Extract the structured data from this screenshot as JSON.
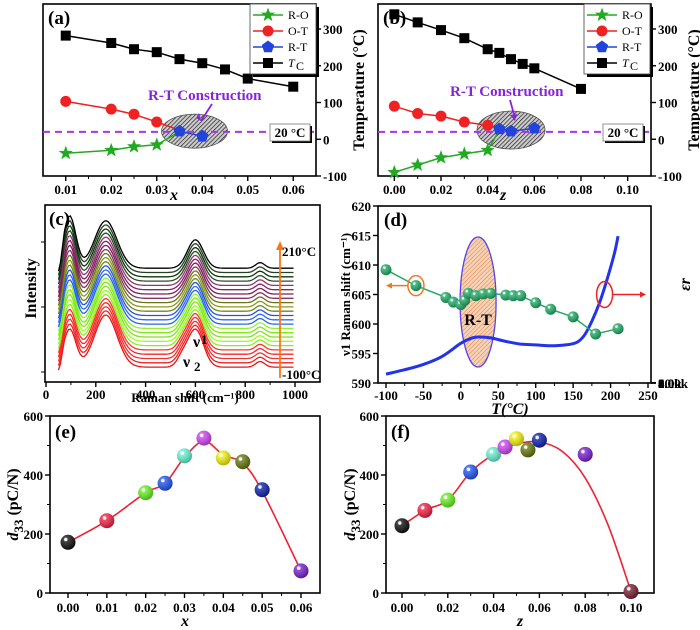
{
  "chart_data": [
    {
      "panel": "(a)",
      "type": "line",
      "xlabel": "x",
      "ylabel": "Temperature (°C)",
      "xlim": [
        0.005,
        0.065
      ],
      "ylim": [
        -100,
        350
      ],
      "xticks": [
        "0.01",
        "0.02",
        "0.03",
        "0.04",
        "0.05",
        "0.06"
      ],
      "yticks": [
        "-100",
        "0",
        "100",
        "200",
        "300"
      ],
      "series": [
        {
          "name": "R-O",
          "color": "#22aa22",
          "marker": "star",
          "x": [
            0.01,
            0.02,
            0.025,
            0.03,
            0.035
          ],
          "y": [
            -38,
            -30,
            -20,
            -15,
            20
          ]
        },
        {
          "name": "O-T",
          "color": "#ee2222",
          "marker": "circle",
          "x": [
            0.01,
            0.02,
            0.025,
            0.03,
            0.035
          ],
          "y": [
            103,
            82,
            68,
            47,
            25
          ]
        },
        {
          "name": "R-T",
          "color": "#2244dd",
          "marker": "pentagon",
          "x": [
            0.035,
            0.04
          ],
          "y": [
            22,
            8
          ]
        },
        {
          "name": "T_C",
          "color": "#000000",
          "marker": "square",
          "x": [
            0.01,
            0.02,
            0.025,
            0.03,
            0.035,
            0.04,
            0.045,
            0.05,
            0.06
          ],
          "y": [
            282,
            262,
            245,
            237,
            218,
            207,
            190,
            165,
            143
          ]
        }
      ],
      "reference_line": {
        "y": 20,
        "label": "20 °C",
        "color": "#aa33ee"
      },
      "annotation": {
        "text": "R-T Construction",
        "color": "#8822dd",
        "ellipse_center": [
          0.0383,
          22
        ]
      },
      "legend": {
        "entries": [
          "R-O",
          "O-T",
          "R-T",
          "T_C"
        ],
        "position": "top-right"
      }
    },
    {
      "panel": "(b)",
      "type": "line",
      "xlabel": "z",
      "ylabel": "Temperature (°C)",
      "xlim": [
        -0.007,
        0.11
      ],
      "ylim": [
        -100,
        350
      ],
      "xticks": [
        "0.00",
        "0.02",
        "0.04",
        "0.06",
        "0.08",
        "0.10"
      ],
      "yticks": [
        "-100",
        "0",
        "100",
        "200",
        "300"
      ],
      "series": [
        {
          "name": "R-O",
          "color": "#22aa22",
          "marker": "star",
          "x": [
            0.0,
            0.01,
            0.02,
            0.03,
            0.04,
            0.045
          ],
          "y": [
            -90,
            -70,
            -50,
            -40,
            -30,
            25
          ]
        },
        {
          "name": "O-T",
          "color": "#ee2222",
          "marker": "circle",
          "x": [
            0.0,
            0.01,
            0.02,
            0.03,
            0.04
          ],
          "y": [
            90,
            70,
            63,
            47,
            38
          ]
        },
        {
          "name": "R-T",
          "color": "#2244dd",
          "marker": "pentagon",
          "x": [
            0.045,
            0.05,
            0.06
          ],
          "y": [
            28,
            22,
            30
          ]
        },
        {
          "name": "T_C",
          "color": "#000000",
          "marker": "square",
          "x": [
            0.0,
            0.01,
            0.02,
            0.03,
            0.04,
            0.045,
            0.05,
            0.055,
            0.06,
            0.08
          ],
          "y": [
            340,
            318,
            297,
            275,
            245,
            235,
            218,
            205,
            193,
            137
          ]
        }
      ],
      "reference_line": {
        "y": 20,
        "label": "20 °C",
        "color": "#aa33ee"
      },
      "annotation": {
        "text": "R-T Construction",
        "color": "#8822dd",
        "ellipse_center": [
          0.05,
          25
        ]
      },
      "legend": {
        "entries": [
          "R-O",
          "O-T",
          "R-T",
          "T_C"
        ],
        "position": "top-right"
      }
    },
    {
      "panel": "(c)",
      "type": "line",
      "xlabel": "Raman shift (cm⁻¹)",
      "ylabel": "Intensity",
      "xlim": [
        0,
        1000
      ],
      "xticks": [
        "0",
        "200",
        "400",
        "600",
        "800",
        "1000"
      ],
      "temperature_range": [
        "-100°C",
        "210°C"
      ],
      "arrow_top_label": "210°C",
      "arrow_bottom_label": "-100°C",
      "peak_labels": [
        "ν1",
        "ν2"
      ],
      "num_spectra": 24,
      "spectra_colors": [
        "#ee1111",
        "#ee2222",
        "#ee3333",
        "#ff2222",
        "#ff3333",
        "#88ee22",
        "#99ff22",
        "#88dd22",
        "#77ee11",
        "#99ee33",
        "#2266ee",
        "#3366ff",
        "#2255dd",
        "#778811",
        "#889922",
        "#667711",
        "#883366",
        "#772255",
        "#882266",
        "#993377",
        "#225522",
        "#113311",
        "#224422",
        "#000000"
      ],
      "peaks_cm1": [
        90,
        250,
        600,
        860
      ]
    },
    {
      "panel": "(d)",
      "type": "line",
      "xlabel": "T(°C)",
      "ylabel_left": "ν1 Raman shift (cm⁻¹)",
      "ylabel_right": "εr",
      "xlim": [
        -120,
        250
      ],
      "ylim_left": [
        590,
        620
      ],
      "ylim_right": [
        0,
        10000
      ],
      "xticks": [
        "-100",
        "-50",
        "0",
        "50",
        "100",
        "150",
        "200",
        "250"
      ],
      "yticks_left": [
        "590",
        "595",
        "600",
        "605",
        "610",
        "615",
        "620"
      ],
      "yticks_right": [
        "0.0",
        "2.0k",
        "4.0k",
        "6.0k",
        "8.0k",
        "10.0k"
      ],
      "series": [
        {
          "name": "ν1 Raman shift",
          "axis": "left",
          "color": "#22aa66",
          "marker": "sphere",
          "x": [
            -100,
            -60,
            -20,
            -10,
            0,
            5,
            10,
            20,
            30,
            40,
            60,
            70,
            80,
            100,
            120,
            150,
            180,
            210
          ],
          "y": [
            609.2,
            606.5,
            604.5,
            603.7,
            603.3,
            604.0,
            605.2,
            604.8,
            605.1,
            605.2,
            604.9,
            604.8,
            604.8,
            603.6,
            602.5,
            601.2,
            598.3,
            599.2
          ]
        },
        {
          "name": "εr",
          "axis": "right",
          "color": "#2233ee",
          "marker": "none",
          "x": [
            -100,
            -75,
            -50,
            -25,
            0,
            15,
            25,
            40,
            60,
            80,
            100,
            120,
            140,
            155,
            165,
            175,
            185,
            195,
            205,
            210
          ],
          "y": [
            500,
            750,
            1050,
            1500,
            2250,
            2550,
            2600,
            2550,
            2350,
            2200,
            2150,
            2100,
            2150,
            2300,
            2700,
            3500,
            4500,
            5800,
            7300,
            8300
          ]
        }
      ],
      "annotation": {
        "text": "R-T",
        "ellipse_center_x": 23
      }
    },
    {
      "panel": "(e)",
      "type": "scatter",
      "xlabel": "x",
      "ylabel": "d33 (pC/N)",
      "xlim": [
        -0.005,
        0.065
      ],
      "ylim": [
        0,
        600
      ],
      "xticks": [
        "0.00",
        "0.01",
        "0.02",
        "0.03",
        "0.04",
        "0.05",
        "0.06"
      ],
      "yticks": [
        "0",
        "200",
        "400",
        "600"
      ],
      "x": [
        0.0,
        0.01,
        0.02,
        0.025,
        0.03,
        0.035,
        0.04,
        0.045,
        0.05,
        0.06
      ],
      "y": [
        172,
        245,
        340,
        372,
        465,
        525,
        458,
        445,
        350,
        75
      ],
      "colors": [
        "#111111",
        "#ee2244",
        "#66ee22",
        "#2255ee",
        "#66eecc",
        "#cc44ee",
        "#eeee11",
        "#667711",
        "#1122aa",
        "#7722cc"
      ],
      "fit_color": "#ee2233"
    },
    {
      "panel": "(f)",
      "type": "scatter",
      "xlabel": "z",
      "ylabel": "d33 (pC/N)",
      "xlim": [
        -0.007,
        0.11
      ],
      "ylim": [
        0,
        600
      ],
      "xticks": [
        "0.00",
        "0.02",
        "0.04",
        "0.06",
        "0.08",
        "0.10"
      ],
      "yticks": [
        "0",
        "200",
        "400",
        "600"
      ],
      "x": [
        0.0,
        0.01,
        0.02,
        0.03,
        0.04,
        0.045,
        0.05,
        0.055,
        0.06,
        0.08,
        0.1
      ],
      "y": [
        228,
        280,
        315,
        410,
        470,
        495,
        523,
        485,
        518,
        470,
        5
      ],
      "colors": [
        "#111111",
        "#ee2244",
        "#66ee22",
        "#2255ee",
        "#66eecc",
        "#cc44ee",
        "#eeee11",
        "#667711",
        "#1122aa",
        "#7722cc",
        "#772233"
      ],
      "fit_color": "#ee2233"
    }
  ]
}
